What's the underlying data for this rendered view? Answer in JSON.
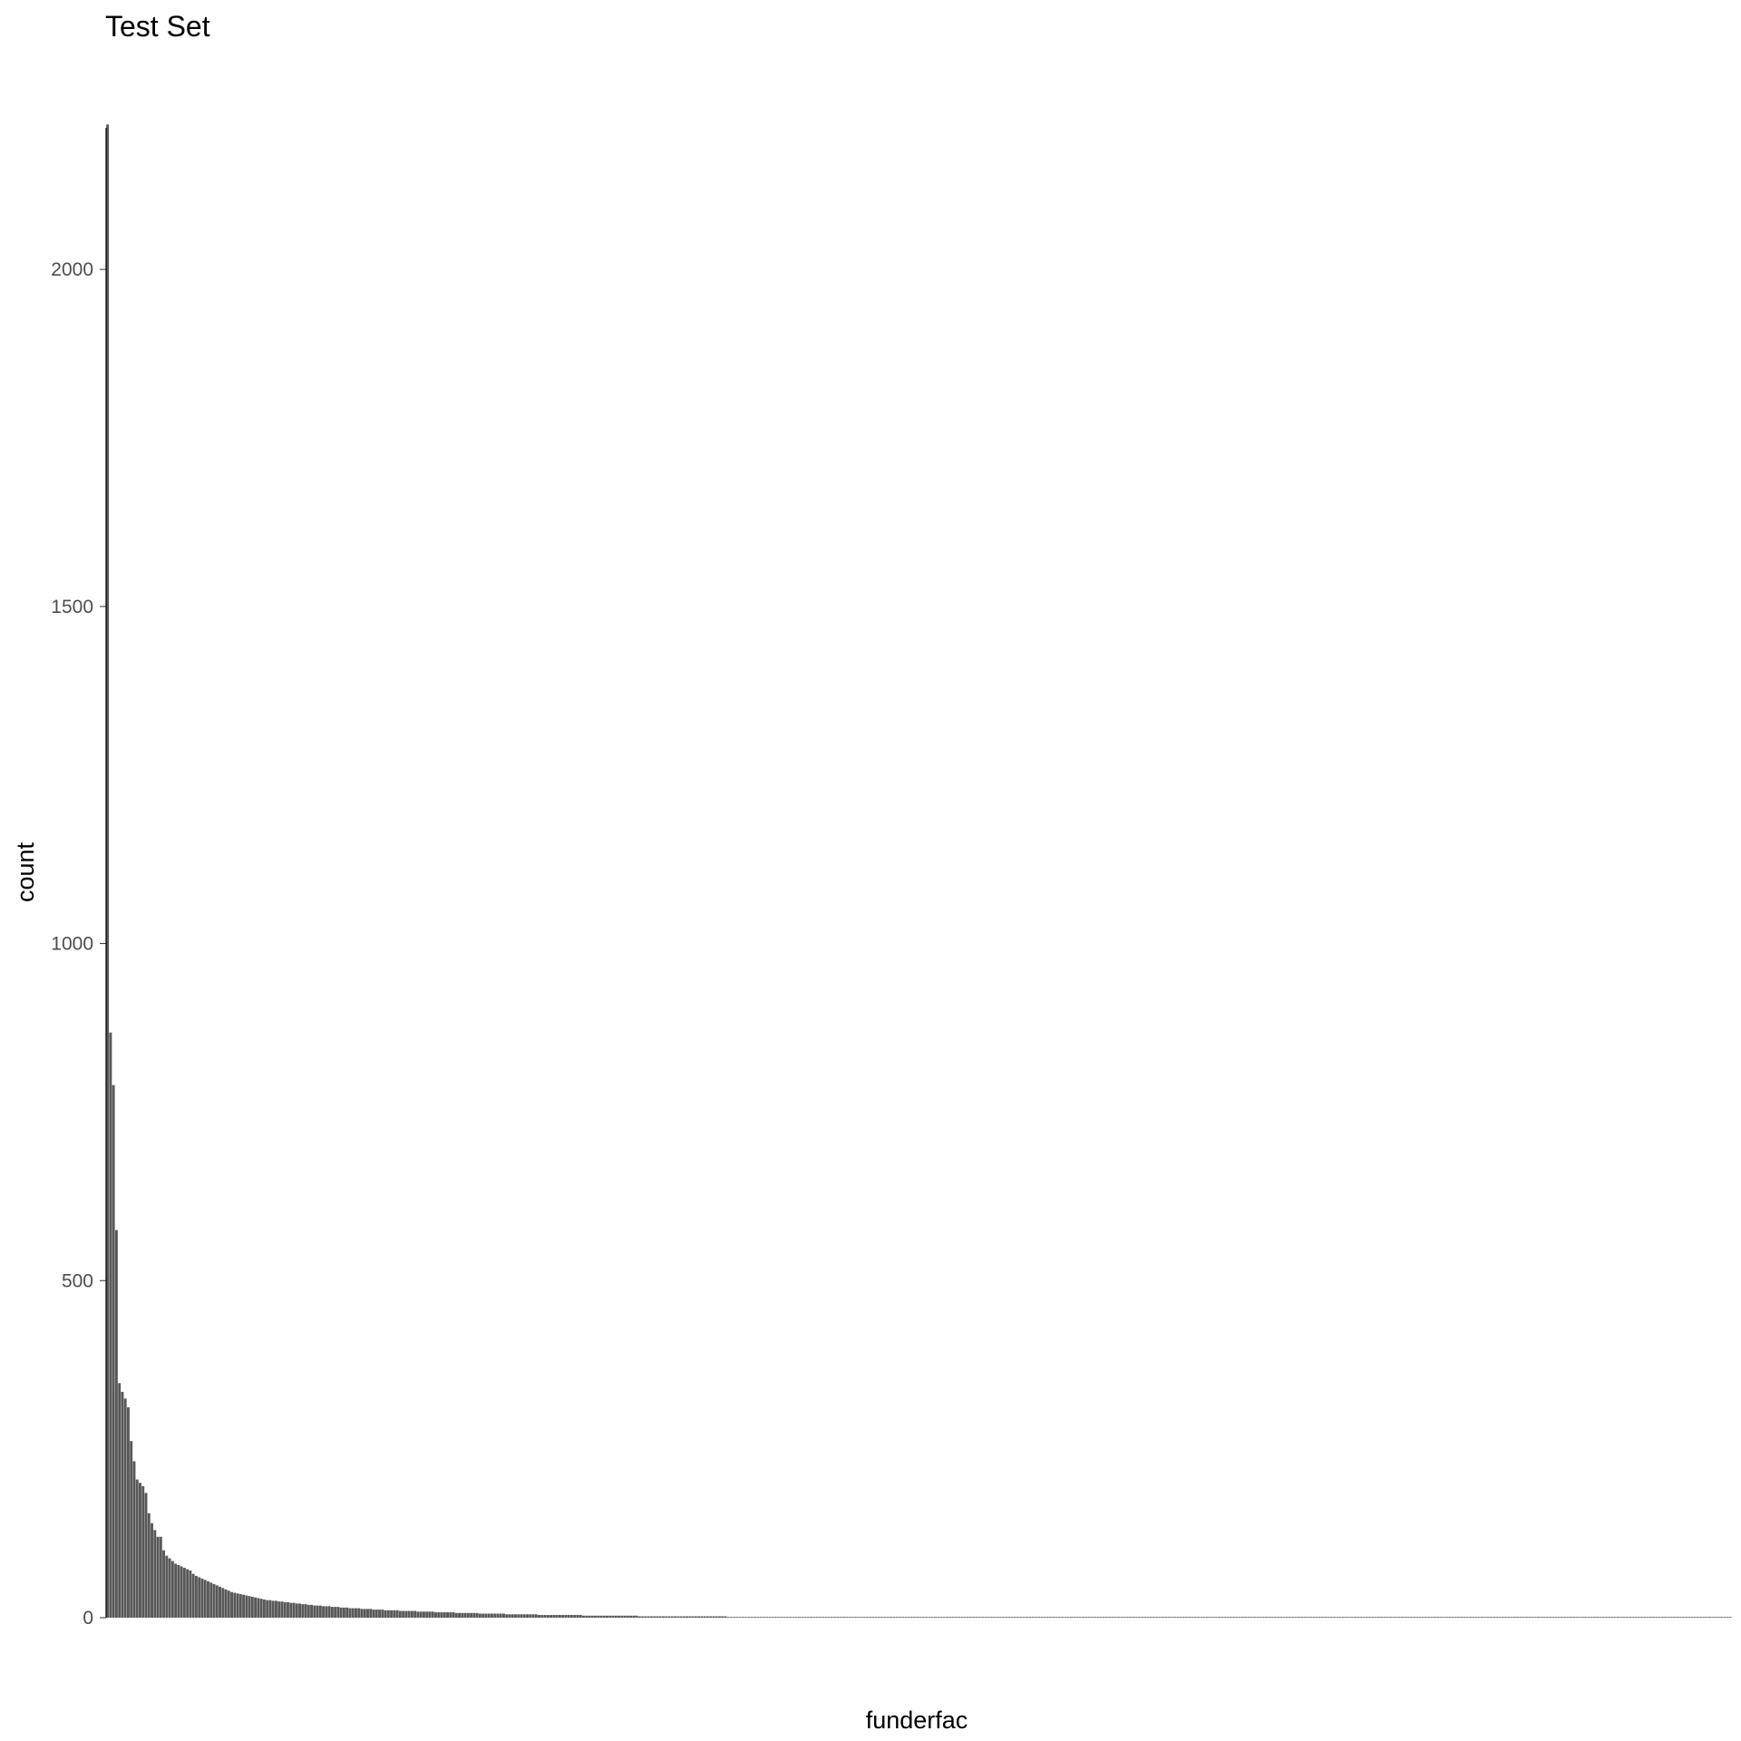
{
  "chart_data": {
    "type": "bar",
    "title": "Test Set",
    "xlabel": "funderfac",
    "ylabel": "count",
    "ylim": [
      0,
      2210
    ],
    "y_ticks": [
      "0",
      "500",
      "1000",
      "1500",
      "2000"
    ],
    "x_tick_labels_shown": false,
    "grid": false,
    "legend": "none",
    "bar_color": "#595959",
    "axis_color": "#000000",
    "n_categories": 550,
    "values_note": "categories sorted by count, descending; long tail of low counts",
    "values": [
      2215,
      868,
      790,
      575,
      348,
      335,
      325,
      312,
      262,
      232,
      205,
      200,
      195,
      185,
      155,
      140,
      130,
      120,
      120,
      100,
      92,
      88,
      84,
      80,
      78,
      76,
      74,
      72,
      70,
      65,
      62,
      60,
      58,
      56,
      54,
      52,
      50,
      48,
      46,
      44,
      42,
      40,
      38,
      37,
      36,
      35,
      34,
      33,
      32,
      31,
      30,
      29,
      28,
      27,
      26,
      26,
      25,
      25,
      24,
      24,
      23,
      23,
      22,
      22,
      21,
      21,
      20,
      20,
      19,
      19,
      18,
      18,
      18,
      17,
      17,
      17,
      16,
      16,
      16,
      15,
      15,
      15,
      14,
      14,
      14,
      14,
      13,
      13,
      13,
      13,
      12,
      12,
      12,
      12,
      11,
      11,
      11,
      11,
      11,
      10,
      10,
      10,
      10,
      10,
      10,
      9,
      9,
      9,
      9,
      9,
      9,
      8,
      8,
      8,
      8,
      8,
      8,
      8,
      7,
      7,
      7,
      7,
      7,
      7,
      7,
      7,
      6,
      6,
      6,
      6,
      6,
      6,
      6,
      6,
      6,
      5,
      5,
      5,
      5,
      5,
      5,
      5,
      5,
      5,
      5,
      5,
      4,
      4,
      4,
      4,
      4,
      4,
      4,
      4,
      4,
      4,
      4,
      4,
      4,
      4,
      4,
      3,
      3,
      3,
      3,
      3,
      3,
      3,
      3,
      3,
      3,
      3,
      3,
      3,
      3,
      3,
      3,
      3,
      3,
      3,
      2,
      2,
      2,
      2,
      2,
      2,
      2,
      2,
      2,
      2,
      2,
      2,
      2,
      2,
      2,
      2,
      2,
      2,
      2,
      2,
      2,
      2,
      2,
      2,
      2,
      2,
      2,
      2,
      2,
      2,
      1,
      1,
      1,
      1,
      1,
      1,
      1,
      1,
      1,
      1,
      1,
      1,
      1,
      1,
      1,
      1,
      1,
      1,
      1,
      1,
      1,
      1,
      1,
      1,
      1,
      1,
      1,
      1,
      1,
      1,
      1,
      1,
      1,
      1,
      1,
      1,
      1,
      1,
      1,
      1,
      1,
      1,
      1,
      1,
      1,
      1,
      1,
      1,
      1,
      1,
      1,
      1,
      1,
      1,
      1,
      1,
      1,
      1,
      1,
      1,
      1,
      1,
      1,
      1,
      1,
      1,
      1,
      1,
      1,
      1,
      1,
      1,
      1,
      1,
      1,
      1,
      1,
      1,
      1,
      1,
      1,
      1,
      1,
      1,
      1,
      1,
      1,
      1,
      1,
      1,
      1,
      1,
      1,
      1,
      1,
      1,
      1,
      1,
      1,
      1,
      1,
      1,
      1,
      1,
      1,
      1,
      1,
      1,
      1,
      1,
      1,
      1,
      1,
      1,
      1,
      1,
      1,
      1,
      1,
      1,
      1,
      1,
      1,
      1,
      1,
      1,
      1,
      1,
      1,
      1,
      1,
      1,
      1,
      1,
      1,
      1,
      1,
      1,
      1,
      1,
      1,
      1,
      1,
      1,
      1,
      1,
      1,
      1,
      1,
      1,
      1,
      1,
      1,
      1,
      1,
      1,
      1,
      1,
      1,
      1,
      1,
      1,
      1,
      1,
      1,
      1,
      1,
      1,
      1,
      1,
      1,
      1,
      1,
      1,
      1,
      1,
      1,
      1,
      1,
      1,
      1,
      1,
      1,
      1,
      1,
      1,
      1,
      1,
      1,
      1,
      1,
      1,
      1,
      1,
      1,
      1,
      1,
      1,
      1,
      1,
      1,
      1,
      1,
      1,
      1,
      1,
      1,
      1,
      1,
      1,
      1,
      1,
      1,
      1,
      1,
      1,
      1,
      1,
      1,
      1,
      1,
      1,
      1,
      1,
      1,
      1,
      1,
      1,
      1,
      1,
      1,
      1,
      1,
      1,
      1,
      1,
      1,
      1,
      1,
      1,
      1,
      1,
      1,
      1,
      1,
      1,
      1,
      1,
      1,
      1,
      1,
      1,
      1,
      1,
      1,
      1,
      1,
      1,
      1,
      1,
      1,
      1,
      1,
      1,
      1,
      1,
      1,
      1,
      1,
      1,
      1,
      1,
      1,
      1,
      1,
      1,
      1,
      1,
      1,
      1,
      1,
      1,
      1,
      1,
      1,
      1,
      1,
      1,
      1,
      1,
      1,
      1,
      1,
      1,
      1,
      1,
      1,
      1,
      1,
      1,
      1,
      1,
      1,
      1,
      1,
      1,
      1,
      1,
      1,
      1,
      1,
      1,
      1,
      1,
      1,
      1,
      1,
      1,
      1,
      1,
      1,
      1,
      1,
      1,
      1,
      1,
      1,
      1,
      1,
      1,
      1,
      1,
      1,
      1,
      1,
      1,
      1,
      1,
      1,
      1
    ]
  }
}
